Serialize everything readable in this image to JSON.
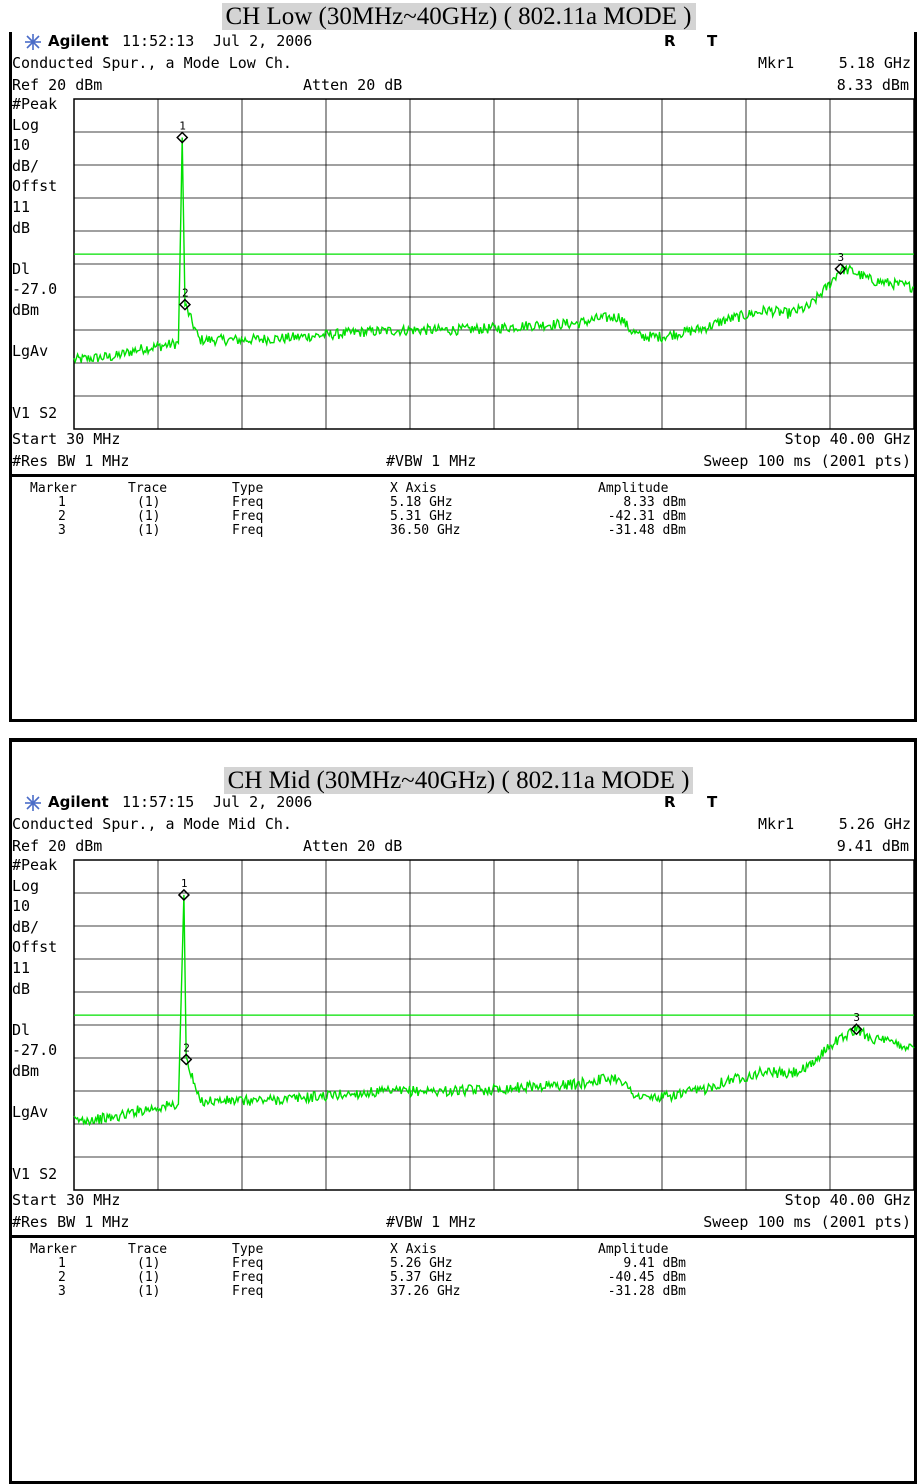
{
  "panels": [
    {
      "title": "CH Low (30MHz~40GHz) ( 802.11a MODE )",
      "brand": "Agilent",
      "time": "11:52:13",
      "date": "Jul 2, 2006",
      "status_r": "R",
      "status_t": "T",
      "measurement": "Conducted Spur., a Mode Low Ch.",
      "marker_readout_label": "Mkr1",
      "marker_readout_freq": "5.18 GHz",
      "ref": "Ref 20 dBm",
      "atten": "Atten 20 dB",
      "marker_readout_amp": "8.33 dBm",
      "side_labels": [
        "#Peak",
        "Log",
        "10",
        "dB/",
        "Offst",
        "11",
        "dB",
        "",
        "Dl",
        "-27.0",
        "dBm",
        "",
        "LgAv",
        "",
        "",
        "V1  S2"
      ],
      "start": "Start 30 MHz",
      "stop": "Stop 40.00 GHz",
      "res_bw": "#Res BW 1 MHz",
      "vbw": "#VBW 1 MHz",
      "sweep": "Sweep 100 ms (2001 pts)",
      "table_headers": [
        "Marker",
        "Trace",
        "Type",
        "X Axis",
        "Amplitude"
      ],
      "table_rows": [
        [
          "1",
          "(1)",
          "Freq",
          "5.18 GHz",
          "8.33 dBm"
        ],
        [
          "2",
          "(1)",
          "Freq",
          "5.31 GHz",
          "-42.31 dBm"
        ],
        [
          "3",
          "(1)",
          "Freq",
          "36.50 GHz",
          "-31.48 dBm"
        ]
      ]
    },
    {
      "title": "CH Mid (30MHz~40GHz) ( 802.11a MODE )",
      "brand": "Agilent",
      "time": "11:57:15",
      "date": "Jul 2, 2006",
      "status_r": "R",
      "status_t": "T",
      "measurement": "Conducted Spur., a Mode Mid Ch.",
      "marker_readout_label": "Mkr1",
      "marker_readout_freq": "5.26 GHz",
      "ref": "Ref 20 dBm",
      "atten": "Atten 20 dB",
      "marker_readout_amp": "9.41 dBm",
      "side_labels": [
        "#Peak",
        "Log",
        "10",
        "dB/",
        "Offst",
        "11",
        "dB",
        "",
        "Dl",
        "-27.0",
        "dBm",
        "",
        "LgAv",
        "",
        "",
        "V1  S2"
      ],
      "start": "Start 30 MHz",
      "stop": "Stop 40.00 GHz",
      "res_bw": "#Res BW 1 MHz",
      "vbw": "#VBW 1 MHz",
      "sweep": "Sweep 100 ms (2001 pts)",
      "table_headers": [
        "Marker",
        "Trace",
        "Type",
        "X Axis",
        "Amplitude"
      ],
      "table_rows": [
        [
          "1",
          "(1)",
          "Freq",
          "5.26 GHz",
          "9.41 dBm"
        ],
        [
          "2",
          "(1)",
          "Freq",
          "5.37 GHz",
          "-40.45 dBm"
        ],
        [
          "3",
          "(1)",
          "Freq",
          "37.26 GHz",
          "-31.28 dBm"
        ]
      ]
    }
  ],
  "chart_data": [
    {
      "type": "line",
      "x_unit": "GHz",
      "y_unit": "dBm",
      "xlim": [
        0.03,
        40.0
      ],
      "ylim": [
        -80,
        20
      ],
      "display_line": -27.0,
      "trace_color": "#00e000",
      "series": [
        {
          "x": [
            0.03,
            1.0,
            2.0,
            3.0,
            4.0,
            5.0,
            5.18,
            5.31,
            6.0,
            8.0,
            10.0,
            12.0,
            14.0,
            16.0,
            18.0,
            20.0,
            22.0,
            24.0,
            25.0,
            26.0,
            26.5,
            27.0,
            28.0,
            30.0,
            31.0,
            32.0,
            33.0,
            34.0,
            35.0,
            36.0,
            36.5,
            37.0,
            38.0,
            40.0
          ],
          "y": [
            -59,
            -58.5,
            -58,
            -56,
            -55,
            -54,
            8.33,
            -42.31,
            -53,
            -53,
            -52.5,
            -51.5,
            -50.5,
            -50,
            -50,
            -49.5,
            -48.5,
            -48,
            -46.5,
            -46,
            -50,
            -52,
            -52,
            -49.5,
            -47,
            -45.5,
            -44,
            -45,
            -43,
            -36,
            -31.48,
            -32,
            -35,
            -37
          ]
        }
      ],
      "markers": [
        {
          "label": "1",
          "x": 5.18,
          "y": 8.33
        },
        {
          "label": "2",
          "x": 5.31,
          "y": -42.31
        },
        {
          "label": "3",
          "x": 36.5,
          "y": -31.48
        }
      ]
    },
    {
      "type": "line",
      "x_unit": "GHz",
      "y_unit": "dBm",
      "xlim": [
        0.03,
        40.0
      ],
      "ylim": [
        -80,
        20
      ],
      "display_line": -27.0,
      "trace_color": "#00e000",
      "series": [
        {
          "x": [
            0.03,
            1.0,
            2.0,
            3.0,
            4.0,
            5.0,
            5.26,
            5.37,
            6.0,
            8.0,
            10.0,
            12.0,
            14.0,
            16.0,
            18.0,
            20.0,
            22.0,
            24.0,
            25.0,
            26.0,
            26.5,
            27.0,
            28.0,
            30.0,
            31.0,
            32.0,
            33.0,
            34.0,
            35.0,
            36.0,
            37.26,
            38.0,
            40.0
          ],
          "y": [
            -59,
            -58.5,
            -58,
            -56,
            -55,
            -54,
            9.41,
            -40.45,
            -53,
            -53,
            -52.5,
            -51.5,
            -50.5,
            -50,
            -50,
            -49.5,
            -48.5,
            -48,
            -46.5,
            -46,
            -50,
            -52,
            -52,
            -49.5,
            -47,
            -45.5,
            -44,
            -45,
            -43,
            -36,
            -31.28,
            -34,
            -37
          ]
        }
      ],
      "markers": [
        {
          "label": "1",
          "x": 5.26,
          "y": 9.41
        },
        {
          "label": "2",
          "x": 5.37,
          "y": -40.45
        },
        {
          "label": "3",
          "x": 37.26,
          "y": -31.28
        }
      ]
    }
  ]
}
